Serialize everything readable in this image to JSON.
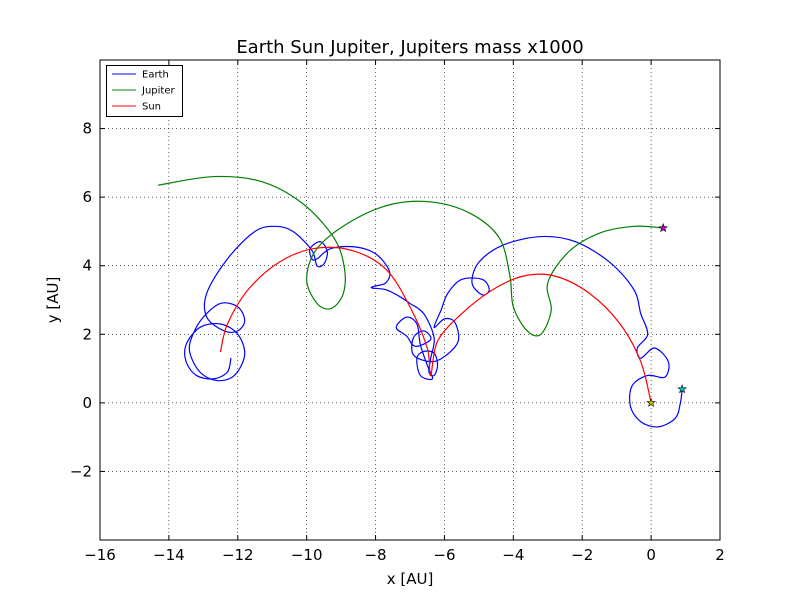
{
  "chart_data": {
    "type": "line",
    "title": "Earth Sun Jupiter, Jupiters mass x1000",
    "xlabel": "x [AU]",
    "ylabel": "y [AU]",
    "xlim": [
      -16,
      2
    ],
    "ylim": [
      -4,
      10
    ],
    "xticks": [
      "−16",
      "−14",
      "−12",
      "−10",
      "−8",
      "−6",
      "−4",
      "−2",
      "0",
      "2"
    ],
    "xtick_values": [
      -16,
      -14,
      -12,
      -10,
      -8,
      -6,
      -4,
      -2,
      0,
      2
    ],
    "yticks": [
      "−2",
      "0",
      "2",
      "4",
      "6",
      "8"
    ],
    "ytick_values": [
      -2,
      0,
      2,
      4,
      6,
      8
    ],
    "grid": true,
    "grid_style": "dotted",
    "legend_position": "top-left",
    "series": [
      {
        "name": "Earth",
        "color": "#0000ff",
        "points": [
          [
            0.9,
            0.4
          ],
          [
            0.85,
            0.0
          ],
          [
            0.7,
            -0.45
          ],
          [
            0.2,
            -0.7
          ],
          [
            -0.3,
            -0.55
          ],
          [
            -0.6,
            -0.1
          ],
          [
            -0.55,
            0.5
          ],
          [
            -0.1,
            0.8
          ],
          [
            0.4,
            0.75
          ],
          [
            0.5,
            1.2
          ],
          [
            0.1,
            1.6
          ],
          [
            -0.3,
            1.3
          ],
          [
            -0.4,
            1.6
          ],
          [
            -0.1,
            2.0
          ],
          [
            -0.3,
            2.6
          ],
          [
            -0.5,
            3.3
          ],
          [
            -1.2,
            4.1
          ],
          [
            -2.2,
            4.7
          ],
          [
            -3.2,
            4.85
          ],
          [
            -4.3,
            4.6
          ],
          [
            -5.0,
            4.1
          ],
          [
            -5.2,
            3.5
          ],
          [
            -4.9,
            3.15
          ],
          [
            -4.7,
            3.3
          ],
          [
            -4.9,
            3.6
          ],
          [
            -5.5,
            3.6
          ],
          [
            -5.9,
            3.2
          ],
          [
            -6.1,
            2.7
          ],
          [
            -6.3,
            2.2
          ],
          [
            -6.0,
            2.45
          ],
          [
            -5.7,
            2.35
          ],
          [
            -5.6,
            1.8
          ],
          [
            -6.0,
            1.35
          ],
          [
            -6.4,
            1.2
          ],
          [
            -6.9,
            1.4
          ],
          [
            -6.9,
            1.9
          ],
          [
            -6.6,
            2.1
          ],
          [
            -6.4,
            1.85
          ],
          [
            -6.85,
            1.65
          ],
          [
            -7.1,
            1.95
          ],
          [
            -7.4,
            2.2
          ],
          [
            -7.1,
            2.5
          ],
          [
            -6.8,
            2.3
          ],
          [
            -6.7,
            1.7
          ],
          [
            -6.5,
            1.1
          ],
          [
            -6.35,
            0.7
          ],
          [
            -6.7,
            0.8
          ],
          [
            -6.8,
            1.3
          ],
          [
            -6.6,
            1.5
          ],
          [
            -6.3,
            1.45
          ],
          [
            -6.2,
            1.1
          ],
          [
            -6.3,
            0.8
          ],
          [
            -6.45,
            0.9
          ],
          [
            -6.4,
            1.3
          ],
          [
            -6.3,
            1.9
          ],
          [
            -6.6,
            2.6
          ],
          [
            -7.0,
            2.9
          ],
          [
            -7.3,
            3.1
          ],
          [
            -7.7,
            3.3
          ],
          [
            -8.1,
            3.35
          ],
          [
            -8.05,
            3.4
          ],
          [
            -7.7,
            3.5
          ],
          [
            -7.6,
            3.85
          ],
          [
            -8.0,
            4.35
          ],
          [
            -8.6,
            4.55
          ],
          [
            -9.3,
            4.5
          ],
          [
            -9.7,
            4.2
          ],
          [
            -9.85,
            4.2
          ],
          [
            -9.9,
            4.5
          ],
          [
            -9.6,
            4.7
          ],
          [
            -9.4,
            4.4
          ],
          [
            -9.5,
            4.05
          ],
          [
            -9.7,
            4.0
          ],
          [
            -9.85,
            4.45
          ],
          [
            -10.4,
            5.0
          ],
          [
            -10.9,
            5.15
          ],
          [
            -11.5,
            5.0
          ],
          [
            -12.3,
            4.2
          ],
          [
            -12.9,
            3.2
          ],
          [
            -12.9,
            2.5
          ],
          [
            -12.4,
            2.1
          ],
          [
            -12.0,
            2.1
          ],
          [
            -11.8,
            2.4
          ],
          [
            -12.0,
            2.8
          ],
          [
            -12.5,
            2.9
          ],
          [
            -13.0,
            2.5
          ],
          [
            -13.3,
            2.0
          ],
          [
            -13.4,
            1.5
          ],
          [
            -13.1,
            0.9
          ],
          [
            -12.6,
            0.65
          ],
          [
            -12.1,
            0.8
          ],
          [
            -11.8,
            1.4
          ],
          [
            -12.0,
            2.0
          ],
          [
            -12.5,
            2.3
          ],
          [
            -13.1,
            2.2
          ],
          [
            -13.5,
            1.7
          ],
          [
            -13.5,
            1.2
          ],
          [
            -13.2,
            0.8
          ],
          [
            -12.7,
            0.7
          ],
          [
            -12.3,
            0.9
          ],
          [
            -12.2,
            1.3
          ]
        ]
      },
      {
        "name": "Jupiter",
        "color": "#008000",
        "points": [
          [
            0.35,
            5.1
          ],
          [
            -0.5,
            5.15
          ],
          [
            -1.5,
            4.95
          ],
          [
            -2.4,
            4.4
          ],
          [
            -3.0,
            3.5
          ],
          [
            -2.9,
            2.7
          ],
          [
            -3.2,
            2.0
          ],
          [
            -3.6,
            2.1
          ],
          [
            -4.0,
            2.8
          ],
          [
            -4.1,
            3.7
          ],
          [
            -4.4,
            4.8
          ],
          [
            -5.2,
            5.5
          ],
          [
            -6.3,
            5.85
          ],
          [
            -7.5,
            5.8
          ],
          [
            -8.7,
            5.3
          ],
          [
            -9.7,
            4.5
          ],
          [
            -10.0,
            3.6
          ],
          [
            -9.7,
            2.9
          ],
          [
            -9.3,
            2.75
          ],
          [
            -8.95,
            3.15
          ],
          [
            -8.9,
            3.9
          ],
          [
            -9.2,
            4.8
          ],
          [
            -10.1,
            5.8
          ],
          [
            -11.3,
            6.45
          ],
          [
            -12.7,
            6.6
          ],
          [
            -14.3,
            6.35
          ]
        ]
      },
      {
        "name": "Sun",
        "color": "#ff0000",
        "points": [
          [
            0.0,
            0.0
          ],
          [
            -0.3,
            1.2
          ],
          [
            -0.9,
            2.3
          ],
          [
            -1.8,
            3.2
          ],
          [
            -2.8,
            3.7
          ],
          [
            -3.7,
            3.7
          ],
          [
            -4.6,
            3.3
          ],
          [
            -5.5,
            2.6
          ],
          [
            -6.2,
            1.8
          ],
          [
            -6.4,
            0.8
          ],
          [
            -6.5,
            1.6
          ],
          [
            -7.0,
            2.8
          ],
          [
            -7.7,
            3.9
          ],
          [
            -8.7,
            4.45
          ],
          [
            -9.8,
            4.5
          ],
          [
            -10.8,
            4.1
          ],
          [
            -11.7,
            3.3
          ],
          [
            -12.3,
            2.3
          ],
          [
            -12.5,
            1.5
          ]
        ]
      }
    ],
    "markers": [
      {
        "name": "earth-start",
        "x": 0.9,
        "y": 0.4,
        "color": "#00bfbf"
      },
      {
        "name": "jupiter-start",
        "x": 0.35,
        "y": 5.1,
        "color": "#bf00bf"
      },
      {
        "name": "sun-start",
        "x": 0.0,
        "y": 0.0,
        "color": "#bfbf00"
      }
    ]
  }
}
